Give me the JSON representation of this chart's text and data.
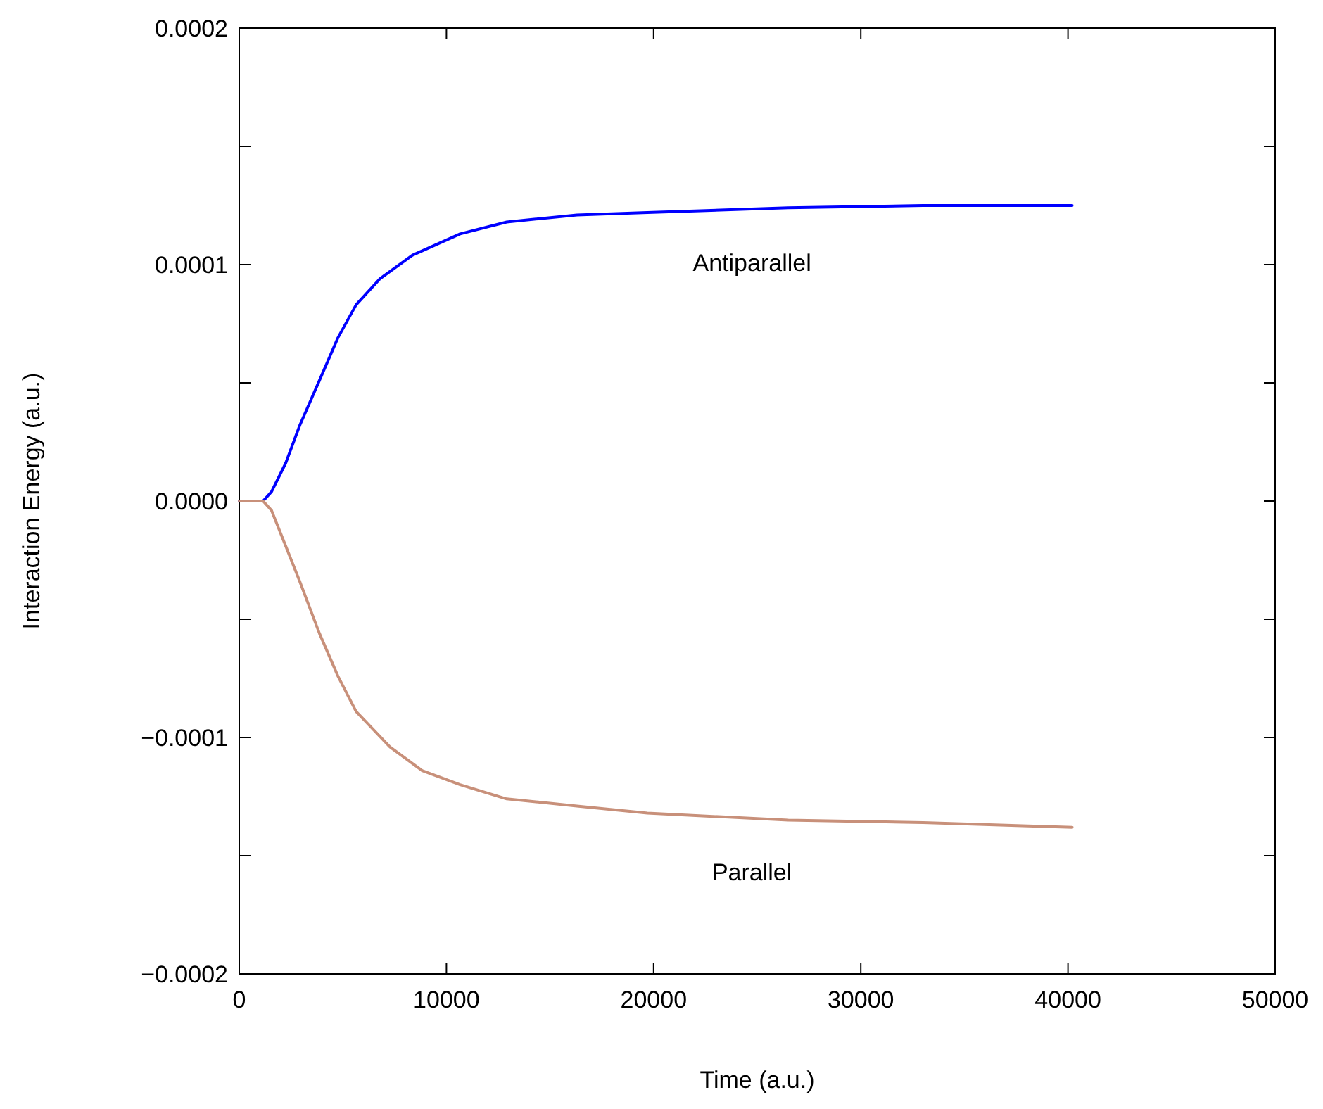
{
  "chart_data": {
    "type": "line",
    "xlabel": "Time (a.u.)",
    "ylabel": "Interaction Energy (a.u.)",
    "xlim": [
      0,
      50000
    ],
    "xticks": [
      0,
      10000,
      20000,
      30000,
      40000,
      50000
    ],
    "ylim": [
      -0.0002,
      0.0002
    ],
    "yticks": [
      {
        "value": -0.0002,
        "label": "−0.0002"
      },
      {
        "value": -0.00015,
        "label": null
      },
      {
        "value": -0.0001,
        "label": "−0.0001"
      },
      {
        "value": -5e-05,
        "label": null
      },
      {
        "value": 0,
        "label": "0.0000"
      },
      {
        "value": 5e-05,
        "label": null
      },
      {
        "value": 0.0001,
        "label": "0.0001"
      },
      {
        "value": 0.00015,
        "label": null
      },
      {
        "value": 0.0002,
        "label": "0.0002"
      }
    ],
    "grid": false,
    "marker": "none",
    "line_style": "solid",
    "series": [
      {
        "name": "Antiparallel",
        "color": "#0000ff",
        "x": [
          0,
          1150,
          1560,
          2240,
          2920,
          3870,
          4760,
          5640,
          6790,
          8360,
          10660,
          12910,
          16300,
          19700,
          26500,
          33000,
          40200
        ],
        "values": [
          0,
          0,
          4e-06,
          1.6e-05,
          3.2e-05,
          5.1e-05,
          6.9e-05,
          8.3e-05,
          9.4e-05,
          0.000104,
          0.000113,
          0.000118,
          0.000121,
          0.000122,
          0.000124,
          0.000125,
          0.000125
        ]
      },
      {
        "name": "Parallel",
        "color": "#c8907a",
        "x": [
          0,
          1150,
          1560,
          2240,
          2920,
          3870,
          4760,
          5640,
          7270,
          8830,
          10660,
          12910,
          16300,
          19700,
          26500,
          33000,
          40200
        ],
        "values": [
          0,
          0,
          -4e-06,
          -1.9e-05,
          -3.4e-05,
          -5.6e-05,
          -7.4e-05,
          -8.9e-05,
          -0.000104,
          -0.000114,
          -0.00012,
          -0.000126,
          -0.000129,
          -0.000132,
          -0.000135,
          -0.000136,
          -0.000138
        ]
      }
    ]
  }
}
